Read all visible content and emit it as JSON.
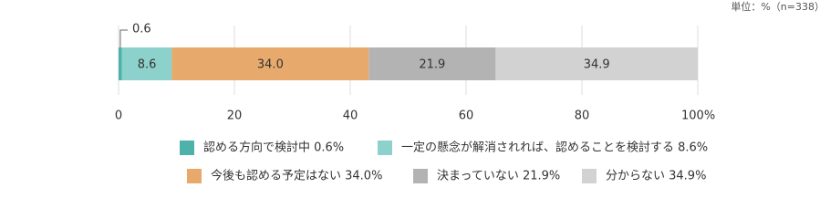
{
  "chart_data": {
    "type": "stacked-bar",
    "note": "単位：%（n=338）",
    "categories": [
      null
    ],
    "series": [
      {
        "name": "認める方向で検討中 0.6%",
        "color": "#4db3a8",
        "values": [
          0.6
        ],
        "value_labels": [
          "0.6"
        ]
      },
      {
        "name": "一定の懸念が解消されれば、認めることを検討する 8.6%",
        "color": "#8dd1cc",
        "values": [
          8.6
        ],
        "value_labels": [
          "8.6"
        ]
      },
      {
        "name": "今後も認める予定はない 34.0%",
        "color": "#e8aa6c",
        "values": [
          34.0
        ],
        "value_labels": [
          "34.0"
        ]
      },
      {
        "name": "決まっていない 21.9%",
        "color": "#b3b3b3",
        "values": [
          21.9
        ],
        "value_labels": [
          "21.9"
        ]
      },
      {
        "name": "分からない 34.9%",
        "color": "#d2d2d2",
        "values": [
          34.9
        ],
        "value_labels": [
          "34.9"
        ]
      }
    ],
    "xlim": [
      0,
      100
    ],
    "xticks": [
      0,
      20,
      40,
      60,
      80,
      {
        "value": 100,
        "label": "100%"
      }
    ],
    "grid": true
  }
}
